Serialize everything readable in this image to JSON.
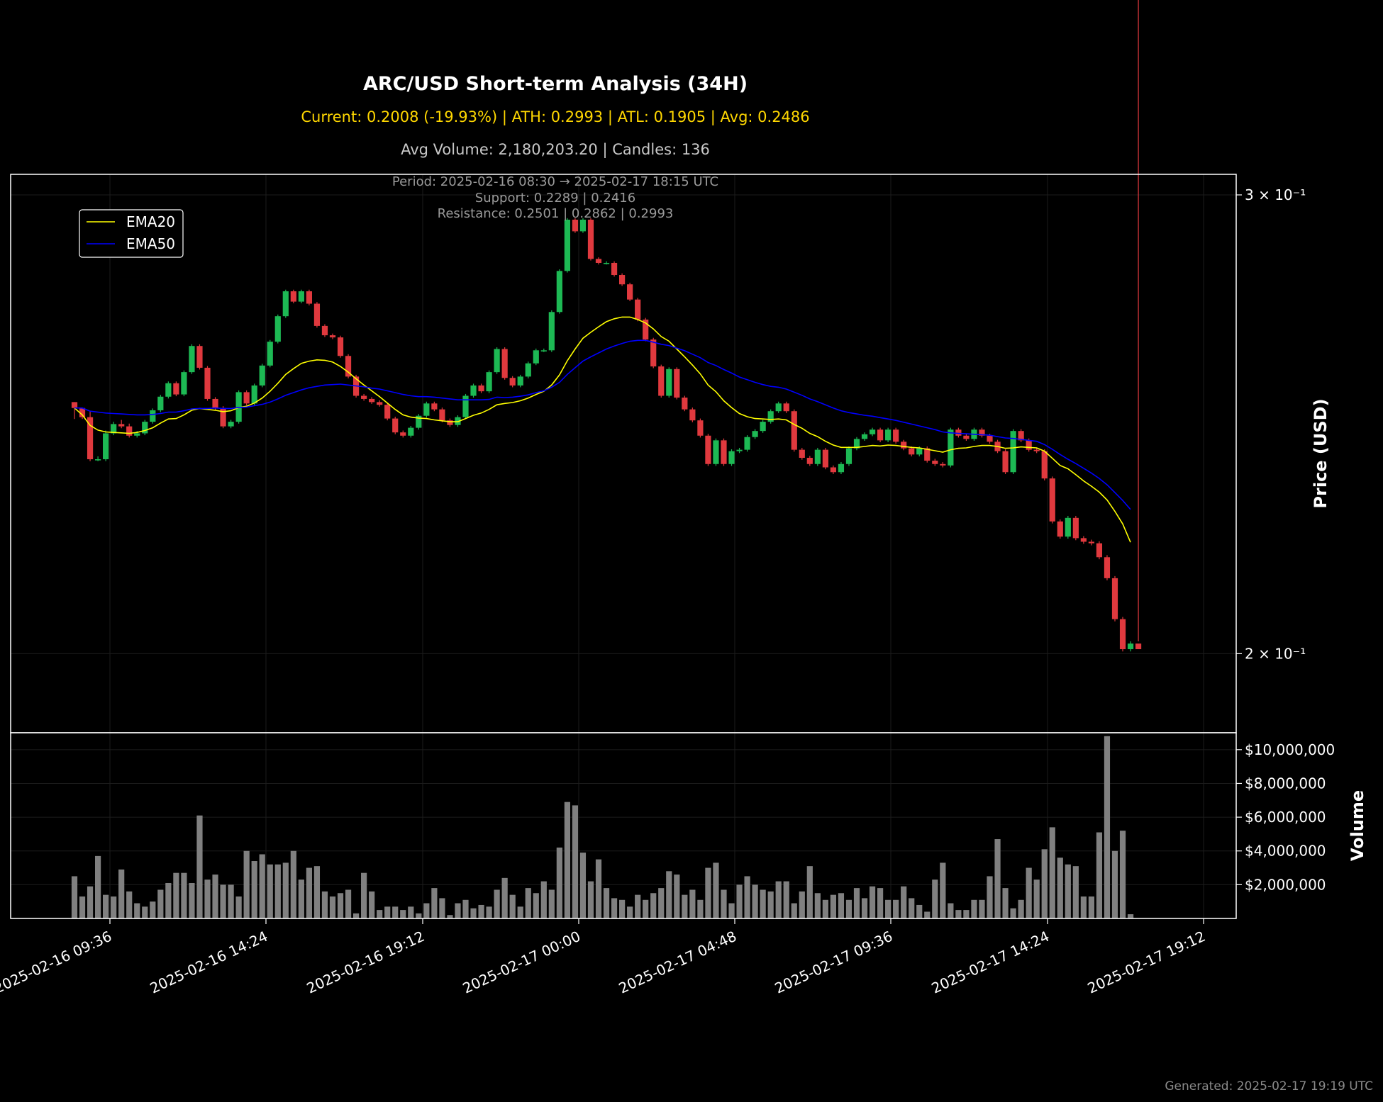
{
  "chart_data": {
    "type": "candlestick",
    "title": "ARC/USD Short-term Analysis (34H)",
    "subtitle_stats": "Current: 0.2008 (-19.93%) | ATH: 0.2993 | ATL: 0.1905 | Avg: 0.2486",
    "subtitle_volume": "Avg Volume: 2,180,203.20 | Candles: 136",
    "info_lines": [
      "Period: 2025-02-16 08:30 → 2025-02-17 18:15 UTC",
      "Support: 0.2289 | 0.2416",
      "Resistance: 0.2501 | 0.2862 | 0.2993"
    ],
    "footer": "Generated: 2025-02-17 19:19 UTC",
    "price_axis": {
      "label": "Price (USD)",
      "scale": "log",
      "ylim": [
        0.1865,
        0.3055
      ],
      "ticks": [
        {
          "value": 0.3,
          "label": "3 × 10⁻¹"
        },
        {
          "value": 0.2,
          "label": "2 × 10⁻¹"
        }
      ]
    },
    "volume_axis": {
      "label": "Volume",
      "ylim": [
        0,
        11000000
      ],
      "ticks": [
        {
          "value": 2000000,
          "label": "$2,000,000"
        },
        {
          "value": 4000000,
          "label": "$4,000,000"
        },
        {
          "value": 6000000,
          "label": "$6,000,000"
        },
        {
          "value": 8000000,
          "label": "$8,000,000"
        },
        {
          "value": 10000000,
          "label": "$10,000,000"
        }
      ]
    },
    "x_axis": {
      "ticks": [
        "2025-02-16 09:36",
        "2025-02-16 14:24",
        "2025-02-16 19:12",
        "2025-02-17 00:00",
        "2025-02-17 04:48",
        "2025-02-17 09:36",
        "2025-02-17 14:24",
        "2025-02-17 19:12"
      ]
    },
    "grid": true,
    "legend": {
      "placement": "upper-left",
      "entries": [
        {
          "name": "EMA20",
          "color": "#FFFF00"
        },
        {
          "name": "EMA50",
          "color": "#0000FF"
        }
      ]
    },
    "colors": {
      "up": "#1DB954",
      "down": "#E0393E",
      "volume": "#808080",
      "ema20": "#FFFF00",
      "ema50": "#0000FF"
    },
    "closes": [
      0.2485,
      0.2465,
      0.2375,
      0.2375,
      0.243,
      0.245,
      0.2445,
      0.2425,
      0.243,
      0.2455,
      0.248,
      0.251,
      0.254,
      0.2515,
      0.2565,
      0.2625,
      0.2575,
      0.2505,
      0.2485,
      0.2445,
      0.2455,
      0.252,
      0.2495,
      0.2535,
      0.258,
      0.2635,
      0.2695,
      0.2755,
      0.273,
      0.2755,
      0.2725,
      0.2672,
      0.265,
      0.2645,
      0.2602,
      0.2555,
      0.2512,
      0.2505,
      0.2498,
      0.2492,
      0.2462,
      0.2432,
      0.2425,
      0.2442,
      0.2468,
      0.2495,
      0.2482,
      0.2458,
      0.2448,
      0.2465,
      0.2512,
      0.2535,
      0.2522,
      0.2565,
      0.2618,
      0.2552,
      0.2535,
      0.2555,
      0.2585,
      0.2615,
      0.2615,
      0.2705,
      0.2805,
      0.2935,
      0.2905,
      0.2935,
      0.2835,
      0.2825,
      0.2825,
      0.2795,
      0.2772,
      0.2735,
      0.2687,
      0.264,
      0.2578,
      0.2512,
      0.2572,
      0.2508,
      0.2482,
      0.2458,
      0.2425,
      0.2365,
      0.2415,
      0.2365,
      0.2392,
      0.2395,
      0.2422,
      0.2435,
      0.2455,
      0.2478,
      0.2495,
      0.2478,
      0.2395,
      0.2378,
      0.2365,
      0.2395,
      0.2358,
      0.2348,
      0.2365,
      0.2398,
      0.2418,
      0.2428,
      0.2438,
      0.2415,
      0.2438,
      0.2412,
      0.2398,
      0.2385,
      0.2398,
      0.2372,
      0.2365,
      0.2362,
      0.2438,
      0.2425,
      0.2418,
      0.2438,
      0.2425,
      0.2412,
      0.2392,
      0.2348,
      0.2435,
      0.2415,
      0.2395,
      0.2392,
      0.2335,
      0.2248,
      0.2218,
      0.2255,
      0.2215,
      0.2208,
      0.2205,
      0.2178,
      0.2138,
      0.2062,
      0.2008,
      0.2018,
      0.2008
    ],
    "highs": [
      0.2498,
      0.2485,
      0.2478,
      0.2381,
      0.2436,
      0.2455,
      0.2459,
      0.2451,
      0.2435,
      0.2459,
      0.2484,
      0.2514,
      0.2544,
      0.2544,
      0.2569,
      0.2629,
      0.2629,
      0.2579,
      0.2509,
      0.2489,
      0.2459,
      0.2524,
      0.2524,
      0.2539,
      0.2584,
      0.2639,
      0.2699,
      0.2759,
      0.2759,
      0.2759,
      0.2759,
      0.2729,
      0.2676,
      0.2654,
      0.2649,
      0.2606,
      0.2559,
      0.2516,
      0.2509,
      0.2502,
      0.2496,
      0.2466,
      0.2436,
      0.2446,
      0.2472,
      0.2499,
      0.2499,
      0.2486,
      0.2462,
      0.2469,
      0.2516,
      0.2539,
      0.2539,
      0.2569,
      0.2622,
      0.2622,
      0.2556,
      0.2559,
      0.2589,
      0.2619,
      0.2619,
      0.2709,
      0.2809,
      0.2939,
      0.2939,
      0.2939,
      0.2939,
      0.2839,
      0.2829,
      0.2829,
      0.2799,
      0.2776,
      0.2739,
      0.2691,
      0.2644,
      0.2582,
      0.2576,
      0.2576,
      0.2512,
      0.2486,
      0.2462,
      0.2429,
      0.2419,
      0.2419,
      0.2396,
      0.2399,
      0.2426,
      0.2439,
      0.2459,
      0.2482,
      0.2499,
      0.2499,
      0.2482,
      0.2399,
      0.2382,
      0.2399,
      0.2399,
      0.2362,
      0.2369,
      0.2402,
      0.2422,
      0.2432,
      0.2442,
      0.2442,
      0.2442,
      0.2442,
      0.2416,
      0.2402,
      0.2402,
      0.2402,
      0.2376,
      0.2369,
      0.2442,
      0.2442,
      0.2429,
      0.2442,
      0.2442,
      0.2429,
      0.2416,
      0.2396,
      0.2439,
      0.2439,
      0.2419,
      0.2399,
      0.2396,
      0.2339,
      0.2252,
      0.2259,
      0.2259,
      0.2219,
      0.2212,
      0.2209,
      0.2182,
      0.2142,
      0.2066,
      0.2022,
      0.2022
    ],
    "lows": [
      0.2461,
      0.2461,
      0.2371,
      0.2371,
      0.2371,
      0.2426,
      0.2441,
      0.2421,
      0.2421,
      0.2426,
      0.2451,
      0.2476,
      0.2506,
      0.2511,
      0.2511,
      0.2561,
      0.2571,
      0.2501,
      0.2481,
      0.2441,
      0.2441,
      0.2451,
      0.2491,
      0.2491,
      0.2531,
      0.2576,
      0.2631,
      0.2691,
      0.2726,
      0.2726,
      0.2721,
      0.2668,
      0.2646,
      0.2641,
      0.2598,
      0.2551,
      0.2508,
      0.2501,
      0.2494,
      0.2488,
      0.2458,
      0.2428,
      0.2421,
      0.2421,
      0.2438,
      0.2464,
      0.2478,
      0.2454,
      0.2444,
      0.2444,
      0.2461,
      0.2508,
      0.2518,
      0.2518,
      0.2561,
      0.2548,
      0.2531,
      0.2531,
      0.2551,
      0.2581,
      0.2611,
      0.2611,
      0.2701,
      0.2801,
      0.2901,
      0.2901,
      0.2831,
      0.2821,
      0.2821,
      0.2791,
      0.2768,
      0.2731,
      0.2683,
      0.2636,
      0.2574,
      0.2508,
      0.2508,
      0.2504,
      0.2478,
      0.2454,
      0.2421,
      0.2361,
      0.2361,
      0.2361,
      0.2361,
      0.2388,
      0.2391,
      0.2418,
      0.2431,
      0.2451,
      0.2474,
      0.2474,
      0.2391,
      0.2374,
      0.2361,
      0.2361,
      0.2354,
      0.2344,
      0.2344,
      0.2361,
      0.2394,
      0.2414,
      0.2424,
      0.2411,
      0.2411,
      0.2408,
      0.2394,
      0.2381,
      0.2381,
      0.2368,
      0.2361,
      0.2358,
      0.2358,
      0.2421,
      0.2414,
      0.2414,
      0.2421,
      0.2408,
      0.2388,
      0.2344,
      0.2344,
      0.2411,
      0.2391,
      0.2388,
      0.2331,
      0.2244,
      0.2214,
      0.2214,
      0.2211,
      0.2204,
      0.2201,
      0.2174,
      0.2134,
      0.2058,
      0.2004,
      0.2004
    ],
    "ema20": [
      0.2485,
      0.247,
      0.2447,
      0.2437,
      0.2433,
      0.2432,
      0.2431,
      0.243,
      0.2432,
      0.2436,
      0.2442,
      0.2452,
      0.2461,
      0.2462,
      0.247,
      0.248,
      0.2484,
      0.2482,
      0.248,
      0.2477,
      0.2479,
      0.2486,
      0.2489,
      0.2496,
      0.2507,
      0.2522,
      0.254,
      0.256,
      0.2573,
      0.2585,
      0.259,
      0.2593,
      0.2592,
      0.2588,
      0.2578,
      0.2565,
      0.255,
      0.2536,
      0.2523,
      0.251,
      0.2496,
      0.2482,
      0.247,
      0.2465,
      0.2463,
      0.2462,
      0.2459,
      0.2457,
      0.2455,
      0.2455,
      0.2462,
      0.2469,
      0.2474,
      0.2482,
      0.2492,
      0.2495,
      0.2497,
      0.2501,
      0.2507,
      0.2515,
      0.2522,
      0.2536,
      0.2559,
      0.2591,
      0.2618,
      0.2643,
      0.2657,
      0.267,
      0.2682,
      0.2689,
      0.2693,
      0.2693,
      0.2687,
      0.2679,
      0.2665,
      0.2647,
      0.2636,
      0.2618,
      0.26,
      0.2581,
      0.2561,
      0.2536,
      0.2521,
      0.2501,
      0.2486,
      0.2473,
      0.2466,
      0.2462,
      0.2461,
      0.246,
      0.2461,
      0.2459,
      0.2449,
      0.2441,
      0.243,
      0.2423,
      0.2413,
      0.2405,
      0.24,
      0.24,
      0.24,
      0.2402,
      0.2404,
      0.2403,
      0.2405,
      0.2404,
      0.2402,
      0.24,
      0.2399,
      0.2396,
      0.2393,
      0.239,
      0.2395,
      0.2398,
      0.2399,
      0.2402,
      0.2404,
      0.2404,
      0.2402,
      0.2398,
      0.2399,
      0.2401,
      0.24,
      0.2399,
      0.2392,
      0.2377,
      0.2362,
      0.2355,
      0.2343,
      0.233,
      0.2319,
      0.2307,
      0.2291,
      0.2268,
      0.2243,
      0.2207
    ],
    "ema50": [
      0.2485,
      0.2485,
      0.2478,
      0.2476,
      0.2474,
      0.2473,
      0.2472,
      0.2471,
      0.247,
      0.247,
      0.2471,
      0.2473,
      0.2476,
      0.2476,
      0.2479,
      0.2483,
      0.2484,
      0.2484,
      0.2485,
      0.2484,
      0.2484,
      0.2486,
      0.2487,
      0.249,
      0.2493,
      0.2498,
      0.2505,
      0.2513,
      0.2519,
      0.2525,
      0.253,
      0.2533,
      0.2536,
      0.2537,
      0.2538,
      0.2536,
      0.2534,
      0.2532,
      0.2529,
      0.2527,
      0.2523,
      0.2519,
      0.2515,
      0.2512,
      0.251,
      0.251,
      0.2509,
      0.2507,
      0.2505,
      0.2503,
      0.2503,
      0.2503,
      0.2503,
      0.2504,
      0.2509,
      0.2508,
      0.2509,
      0.2511,
      0.2514,
      0.2519,
      0.2523,
      0.2531,
      0.2542,
      0.256,
      0.2575,
      0.259,
      0.26,
      0.2609,
      0.2618,
      0.2625,
      0.2631,
      0.2636,
      0.2638,
      0.2638,
      0.2634,
      0.2629,
      0.2626,
      0.262,
      0.2614,
      0.2606,
      0.2598,
      0.2587,
      0.258,
      0.2571,
      0.2563,
      0.2554,
      0.2548,
      0.2542,
      0.2537,
      0.2533,
      0.2531,
      0.2527,
      0.252,
      0.2513,
      0.2505,
      0.2499,
      0.2492,
      0.2485,
      0.2479,
      0.2475,
      0.2472,
      0.2469,
      0.2467,
      0.2464,
      0.2461,
      0.2458,
      0.2454,
      0.245,
      0.2446,
      0.2442,
      0.2438,
      0.2433,
      0.2431,
      0.243,
      0.2429,
      0.2428,
      0.2427,
      0.2426,
      0.2423,
      0.242,
      0.2419,
      0.2417,
      0.2415,
      0.2413,
      0.2406,
      0.2396,
      0.2385,
      0.2375,
      0.2366,
      0.2356,
      0.2346,
      0.2335,
      0.2322,
      0.2306,
      0.229,
      0.2272
    ],
    "volumes": [
      2500000,
      1300000,
      1900000,
      3700000,
      1400000,
      1300000,
      2900000,
      1600000,
      900000,
      700000,
      1000000,
      1700000,
      2100000,
      2700000,
      2700000,
      2100000,
      6100000,
      2300000,
      2600000,
      2000000,
      2000000,
      1300000,
      4000000,
      3400000,
      3800000,
      3200000,
      3200000,
      3300000,
      4000000,
      2300000,
      3000000,
      3100000,
      1600000,
      1300000,
      1500000,
      1700000,
      300000,
      2700000,
      1600000,
      500000,
      700000,
      700000,
      500000,
      700000,
      300000,
      900000,
      1800000,
      1200000,
      200000,
      900000,
      1100000,
      600000,
      800000,
      700000,
      1700000,
      2400000,
      1400000,
      700000,
      1800000,
      1500000,
      2200000,
      1700000,
      4200000,
      6900000,
      6700000,
      3900000,
      2200000,
      3500000,
      1800000,
      1200000,
      1100000,
      700000,
      1400000,
      1100000,
      1500000,
      1800000,
      2800000,
      2600000,
      1400000,
      1700000,
      1100000,
      3000000,
      3300000,
      1700000,
      900000,
      2000000,
      2500000,
      2000000,
      1700000,
      1600000,
      2200000,
      2200000,
      900000,
      1600000,
      3100000,
      1500000,
      1100000,
      1400000,
      1500000,
      1100000,
      1800000,
      1200000,
      1900000,
      1800000,
      1100000,
      1100000,
      1900000,
      1200000,
      800000,
      400000,
      2300000,
      3300000,
      900000,
      500000,
      500000,
      1100000,
      1100000,
      2500000,
      4700000,
      1800000,
      600000,
      1100000,
      3000000,
      2300000,
      4100000,
      5400000,
      3600000,
      3200000,
      3100000,
      1300000,
      1300000,
      5100000,
      10800000,
      4000000,
      5200000,
      250000
    ]
  }
}
